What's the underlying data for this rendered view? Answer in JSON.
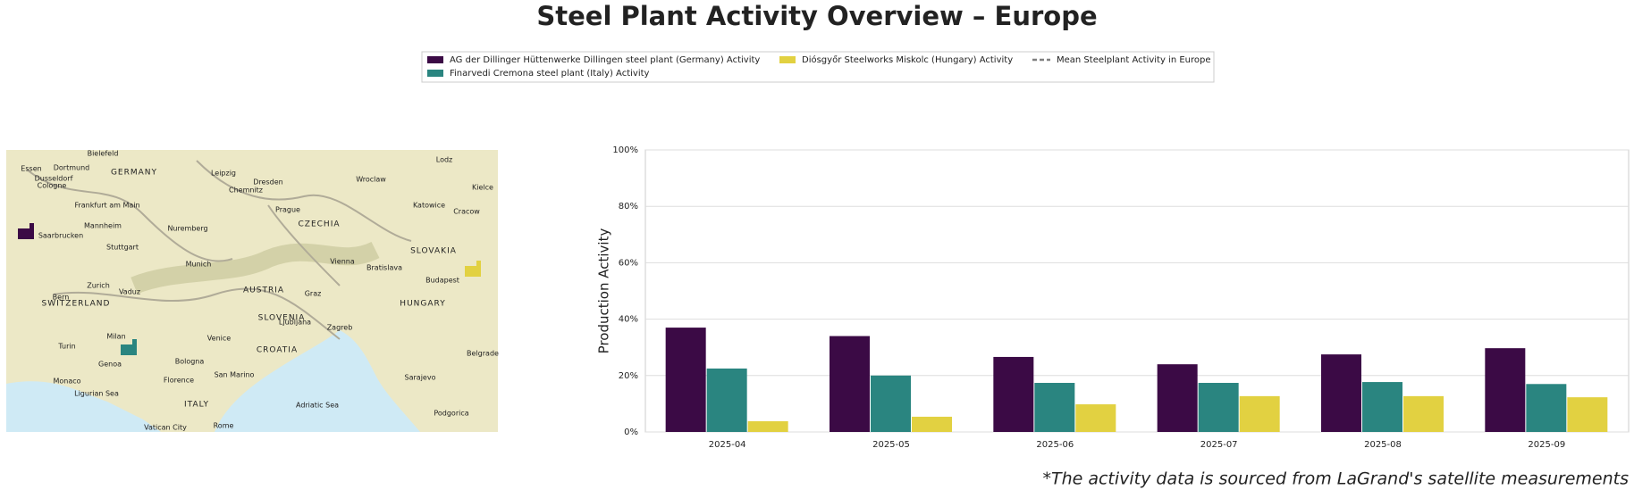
{
  "title": "Steel Plant Activity Overview – Europe",
  "footnote": "*The activity data is sourced from LaGrand's satellite measurements",
  "map": {
    "labels": [
      "Bielefeld",
      "Essen",
      "Dortmund",
      "GERMANY",
      "Leipzig",
      "Dresden",
      "Wroclaw",
      "Lodz",
      "Dusseldorf",
      "Cologne",
      "Chemnitz",
      "Katowice",
      "Kielce",
      "Frankfurt am Main",
      "Prague",
      "Cracow",
      "CZECHIA",
      "Mannheim",
      "Nuremberg",
      "Saarbrucken",
      "Stuttgart",
      "SLOVAKIA",
      "Munich",
      "Vienna",
      "Bratislava",
      "Budapest",
      "Zurich",
      "Vaduz",
      "AUSTRIA",
      "Graz",
      "HUNGARY",
      "Bern",
      "SWITZERLAND",
      "SLOVENIA",
      "Ljubljana",
      "Zagreb",
      "Milan",
      "Venice",
      "Turin",
      "Genoa",
      "CROATIA",
      "Bologna",
      "Monaco",
      "Florence",
      "San Marino",
      "Sarajevo",
      "ITALY",
      "Adriatic Sea",
      "Ligurian Sea",
      "Vatican City",
      "Rome",
      "Podgorica",
      "Belgrade"
    ]
  },
  "chart_data": {
    "type": "bar",
    "ylabel": "Production Activity",
    "categories": [
      "2025-04",
      "2025-05",
      "2025-06",
      "2025-07",
      "2025-08",
      "2025-09"
    ],
    "series": [
      {
        "name": "AG der Dillinger Hüttenwerke Dillingen steel plant (Germany) Activity",
        "color": "#3b0a45",
        "values": [
          37,
          34,
          26.6,
          24,
          27.5,
          29.7
        ]
      },
      {
        "name": "Finarvedi Cremona steel plant (Italy) Activity",
        "color": "#2a8580",
        "values": [
          22.5,
          20,
          17.4,
          17.4,
          17.7,
          17
        ]
      },
      {
        "name": "Diósgyőr Steelworks Miskolc (Hungary) Activity",
        "color": "#e2d141",
        "values": [
          3.8,
          5.4,
          9.8,
          12.7,
          12.7,
          12.3
        ]
      }
    ],
    "mean_line": {
      "name": "Mean Steelplant Activity in Europe",
      "color": "#808080"
    },
    "ylim": [
      0,
      100
    ],
    "yticks": [
      {
        "value": 0,
        "label": "0%"
      },
      {
        "value": 20,
        "label": "20%"
      },
      {
        "value": 40,
        "label": "40%"
      },
      {
        "value": 60,
        "label": "60%"
      },
      {
        "value": 80,
        "label": "80%"
      },
      {
        "value": 100,
        "label": "100%"
      }
    ],
    "grid": true
  }
}
